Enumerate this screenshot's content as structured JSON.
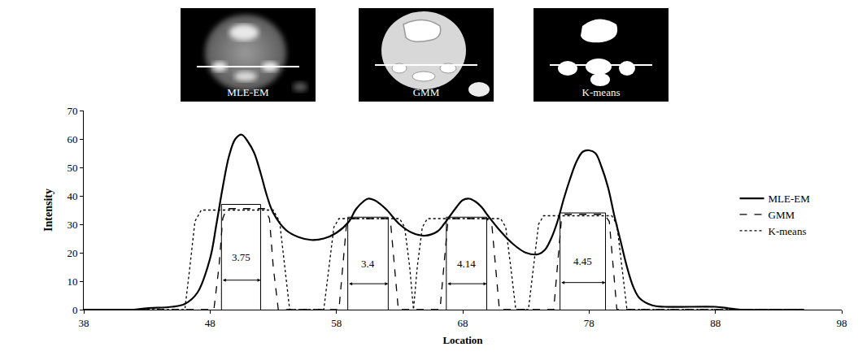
{
  "chart_data": {
    "type": "line",
    "x_label": "Location",
    "y_label": "Intensity",
    "xlim": [
      38,
      98
    ],
    "ylim": [
      0,
      70
    ],
    "xticks": [
      38,
      48,
      58,
      68,
      78,
      88,
      98
    ],
    "yticks": [
      0,
      10,
      20,
      30,
      40,
      50,
      60,
      70
    ],
    "grid": false,
    "legend": "right",
    "series": [
      {
        "name": "MLE-EM",
        "color": "#000000",
        "line_style": "solid",
        "x": [
          38,
          40,
          42,
          43,
          45,
          46,
          47,
          48,
          48.5,
          49,
          49.5,
          50,
          50.5,
          51,
          51.5,
          52,
          52.5,
          53,
          54,
          55,
          56,
          57,
          58,
          59,
          59.5,
          60,
          60.5,
          61,
          61.5,
          62,
          63,
          64,
          65,
          66,
          66.5,
          67,
          67.5,
          68,
          68.5,
          69,
          69.5,
          70,
          71,
          72,
          73,
          74,
          74.5,
          75,
          75.5,
          76,
          76.5,
          77,
          77.5,
          78,
          78.5,
          79,
          79.5,
          80,
          80.5,
          81,
          81.5,
          82,
          83,
          84,
          88,
          89,
          90,
          95
        ],
        "values": [
          0,
          0,
          0,
          0.5,
          1,
          2,
          6,
          18,
          30,
          43,
          54,
          60,
          61.5,
          59,
          55,
          48,
          40,
          34,
          28,
          25.5,
          24.5,
          25,
          27,
          31,
          35,
          37.5,
          39,
          38.5,
          37,
          35,
          30,
          27,
          26,
          27.5,
          30,
          33,
          36,
          38.5,
          39,
          38,
          36,
          33,
          27.5,
          23,
          20,
          19.5,
          21,
          25,
          31,
          39,
          46,
          52,
          55.5,
          56,
          55,
          50,
          43,
          33,
          24,
          15,
          8,
          4,
          1.5,
          1,
          1,
          0.5,
          0,
          0
        ]
      },
      {
        "name": "GMM",
        "color": "#000000",
        "line_style": "dash",
        "x": [
          38,
          48.3,
          48.7,
          49,
          49.3,
          52.3,
          52.7,
          53,
          53.4,
          58.2,
          58.5,
          58.8,
          59.1,
          62,
          62.3,
          62.6,
          62.9,
          66.2,
          66.5,
          66.8,
          67.1,
          69.9,
          70.3,
          70.6,
          70.9,
          75.2,
          75.5,
          75.8,
          76.1,
          79.2,
          79.6,
          79.9,
          80.2,
          95
        ],
        "values": [
          0,
          0,
          15,
          32,
          35.5,
          35.5,
          32,
          15,
          0,
          0,
          15,
          30,
          32,
          32,
          30,
          15,
          0,
          0,
          15,
          30,
          32,
          32,
          30,
          15,
          0,
          0,
          15,
          31,
          33.5,
          33.5,
          31,
          15,
          0,
          0
        ]
      },
      {
        "name": "K-means",
        "color": "#000000",
        "line_style": "dot",
        "x": [
          38,
          46,
          46.4,
          46.8,
          47.3,
          53,
          53.5,
          53.9,
          54.3,
          57,
          57.4,
          57.8,
          58.2,
          63,
          63.4,
          63.8,
          64.1,
          64.4,
          64.8,
          65.2,
          71,
          71.4,
          71.8,
          72.2,
          73.2,
          73.6,
          74,
          74.4,
          79.8,
          80.2,
          80.6,
          81,
          95
        ],
        "values": [
          0,
          0,
          15,
          31,
          35,
          35,
          31,
          15,
          0,
          0,
          15,
          29,
          32,
          32,
          29,
          15,
          0,
          15,
          29,
          32,
          32,
          29,
          15,
          0,
          0,
          15,
          30,
          33,
          33,
          30,
          15,
          0,
          0
        ]
      }
    ],
    "brackets": [
      {
        "label": "3.75",
        "x0": 48.9,
        "x1": 52.0,
        "top": 37
      },
      {
        "label": "3.4",
        "x0": 58.9,
        "x1": 62.1,
        "top": 32.5
      },
      {
        "label": "4.14",
        "x0": 66.7,
        "x1": 69.9,
        "top": 32.5
      },
      {
        "label": "4.45",
        "x0": 75.7,
        "x1": 79.3,
        "top": 34
      }
    ],
    "insets": [
      "MLE-EM",
      "GMM",
      "K-means"
    ]
  }
}
